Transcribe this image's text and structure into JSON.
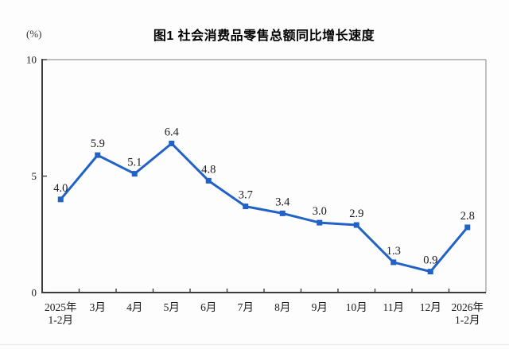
{
  "chart_data": {
    "type": "line",
    "title": "图1  社会消费品零售总额同比增长速度",
    "unit": "(%)",
    "categories": [
      "2025年\n1-2月",
      "3月",
      "4月",
      "5月",
      "6月",
      "7月",
      "8月",
      "9月",
      "10月",
      "11月",
      "12月",
      "2026年\n1-2月"
    ],
    "values": [
      4.0,
      5.9,
      5.1,
      6.4,
      4.8,
      3.7,
      3.4,
      3.0,
      2.9,
      1.3,
      0.9,
      2.8
    ],
    "value_labels": [
      "4.0",
      "5.9",
      "5.1",
      "6.4",
      "4.8",
      "3.7",
      "3.4",
      "3.0",
      "2.9",
      "1.3",
      "0.9",
      "2.8"
    ],
    "xlabel": "",
    "ylabel": "(%)",
    "ylim": [
      0,
      10
    ],
    "y_ticks": [
      0,
      5,
      10
    ],
    "grid": false,
    "legend_position": "none",
    "colors": {
      "line": "#2262c6",
      "marker": "#2262c6",
      "axis": "#3d3d3d",
      "frame": "#999999",
      "text": "#1a1a1a"
    }
  }
}
